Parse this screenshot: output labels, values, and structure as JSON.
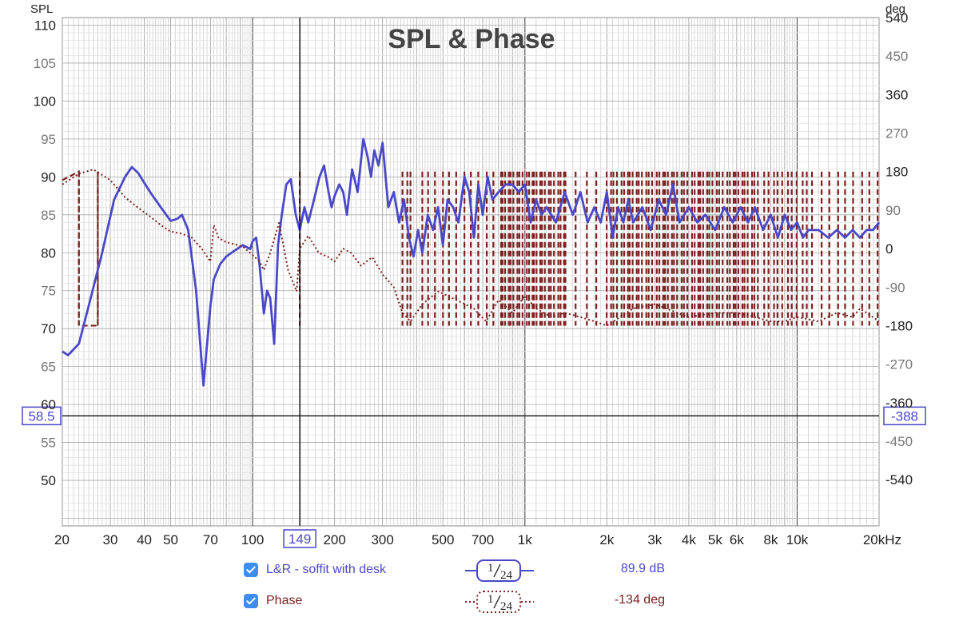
{
  "colors": {
    "spl": "#4a48c8",
    "phase": "#7b2121",
    "grid_major": "#8a8a8a",
    "grid_minor": "#cfcfcf",
    "axis_text": "#222222",
    "minor_text": "#777777"
  },
  "chart_data": {
    "type": "line",
    "title": "SPL & Phase",
    "ylabel_left": "SPL",
    "ylabel_right": "deg",
    "x_scale": "log",
    "xlim_hz": [
      20,
      20000
    ],
    "ylim_left": [
      44,
      111
    ],
    "ylim_right": [
      -648,
      540
    ],
    "x_tick_labels": [
      "20",
      "30",
      "40",
      "50",
      "70",
      "100",
      "200",
      "300",
      "500",
      "700",
      "1k",
      "2k",
      "3k",
      "4k",
      "5k",
      "6k",
      "8k",
      "10k",
      "20kHz"
    ],
    "x_tick_values": [
      20,
      30,
      40,
      50,
      70,
      100,
      200,
      300,
      500,
      700,
      1000,
      2000,
      3000,
      4000,
      5000,
      6000,
      8000,
      10000,
      20000
    ],
    "y_left_ticks": [
      50,
      55,
      60,
      65,
      70,
      75,
      80,
      85,
      90,
      95,
      100,
      105,
      110
    ],
    "y_right_ticks": [
      -540,
      -450,
      -360,
      -270,
      -180,
      -90,
      0,
      90,
      180,
      270,
      360,
      450,
      540
    ],
    "cursor": {
      "x_label": "149",
      "x_hz": 149,
      "y_left_label": "58.5",
      "y_left": 58.5,
      "y_right_label": "-388"
    },
    "series": [
      {
        "name": "L&R - soffit with desk",
        "axis": "left",
        "style": "solid",
        "smoothing": "1/24",
        "readout": "89.9 dB",
        "x": [
          20,
          21,
          23,
          25,
          28,
          31,
          34,
          36,
          38,
          42,
          46,
          50,
          53,
          55,
          58,
          62,
          66,
          70,
          72,
          76,
          80,
          86,
          92,
          98,
          100,
          103,
          106,
          110,
          113,
          116,
          120,
          124,
          128,
          133,
          138,
          144,
          149,
          155,
          160,
          168,
          176,
          183,
          190,
          195,
          200,
          208,
          215,
          222,
          232,
          243,
          255,
          265,
          272,
          280,
          290,
          300,
          315,
          330,
          345,
          360,
          375,
          390,
          405,
          420,
          440,
          460,
          480,
          500,
          520,
          545,
          570,
          600,
          625,
          650,
          675,
          700,
          730,
          760,
          800,
          850,
          900,
          950,
          1000,
          1050,
          1100,
          1150,
          1200,
          1300,
          1400,
          1500,
          1600,
          1700,
          1800,
          1900,
          2000,
          2100,
          2200,
          2300,
          2400,
          2500,
          2700,
          2900,
          3100,
          3300,
          3500,
          3700,
          4000,
          4300,
          4600,
          5000,
          5400,
          5800,
          6200,
          6600,
          7000,
          7500,
          8000,
          8500,
          9000,
          9500,
          10000,
          10500,
          11000,
          12000,
          13000,
          14000,
          15000,
          16000,
          17000,
          18000,
          19000,
          20000
        ],
        "y": [
          67,
          66.5,
          68,
          73,
          80,
          87,
          90,
          91.3,
          90.5,
          88,
          86,
          84.2,
          84.5,
          85,
          83,
          75,
          62.5,
          73,
          76.5,
          78.5,
          79.5,
          80.3,
          81,
          80.5,
          81.5,
          82,
          78.5,
          72,
          75,
          74,
          68,
          81,
          85,
          89,
          89.7,
          85,
          83,
          86,
          84,
          87,
          90,
          91.5,
          88,
          86,
          87.5,
          89,
          88,
          85,
          91,
          88,
          95,
          92.5,
          90,
          93.5,
          91.5,
          94.5,
          86,
          88,
          84,
          87,
          82,
          79.5,
          83,
          80,
          85,
          83,
          86,
          81,
          87,
          86,
          84,
          90,
          88,
          82,
          89,
          85,
          90,
          87,
          88,
          89,
          89,
          88,
          89,
          84,
          87,
          85,
          86,
          84,
          88,
          85,
          88,
          84,
          86,
          84,
          88,
          82,
          86,
          84,
          87,
          84,
          86,
          83,
          87,
          85,
          89,
          84,
          86,
          84,
          85,
          83,
          86,
          84,
          86,
          84,
          86,
          83,
          85,
          82,
          85,
          83,
          84,
          82,
          83,
          83,
          82,
          83,
          82,
          83,
          82,
          83,
          83,
          84
        ]
      },
      {
        "name": "Phase",
        "axis": "right",
        "style": "dotted",
        "smoothing": "1/24",
        "readout": "-134 deg",
        "x": [
          20,
          23,
          26,
          30,
          34,
          38,
          42,
          46,
          50,
          55,
          60,
          65,
          70,
          72,
          75,
          80,
          86,
          92,
          100,
          106,
          110,
          116,
          125,
          135,
          145,
          149,
          160,
          175,
          190,
          200,
          215,
          230,
          250,
          275,
          300,
          330,
          355,
          380,
          420,
          480,
          560,
          650,
          720,
          800,
          900,
          1000,
          1100,
          1250,
          1400,
          1600,
          1800,
          2000,
          2500,
          3000,
          4000,
          5000,
          6000,
          7000,
          8000,
          9000,
          10000,
          12000,
          14000,
          16000,
          17000,
          18000,
          20000
        ],
        "y": [
          150,
          175,
          185,
          160,
          120,
          95,
          75,
          55,
          40,
          35,
          25,
          0,
          -30,
          55,
          25,
          15,
          10,
          5,
          -15,
          -30,
          -50,
          -10,
          60,
          -50,
          -100,
          0,
          30,
          -10,
          -20,
          -30,
          0,
          -10,
          -40,
          -20,
          -60,
          -90,
          -150,
          -170,
          -130,
          -100,
          -120,
          -140,
          -170,
          -120,
          -150,
          -110,
          -140,
          -160,
          -150,
          -160,
          -170,
          -180,
          -140,
          -130,
          -160,
          -150,
          -150,
          -160,
          -170,
          -170,
          -160,
          -170,
          -150,
          -160,
          -140,
          -150,
          -170
        ]
      }
    ]
  },
  "legend": [
    {
      "label": "L&R - soffit with desk",
      "smoothing_num": "1",
      "smoothing_den": "24",
      "value": "89.9 dB"
    },
    {
      "label": "Phase",
      "smoothing_num": "1",
      "smoothing_den": "24",
      "value": "-134 deg"
    }
  ]
}
